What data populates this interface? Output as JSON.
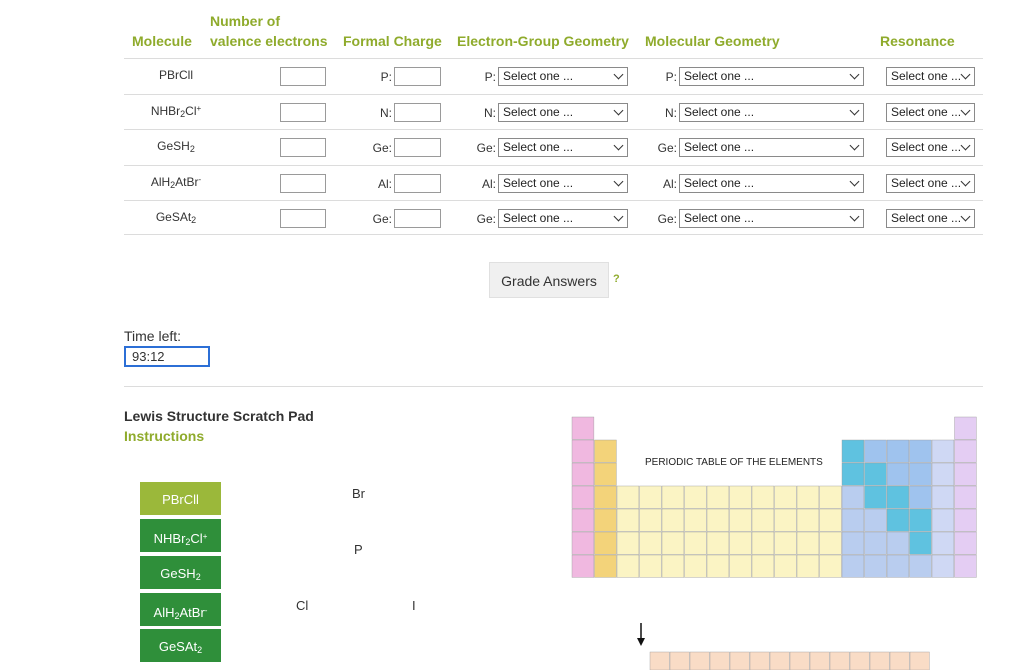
{
  "headers": {
    "molecule": "Molecule",
    "valence_line1": "Number of",
    "valence_line2": "valence electrons",
    "formal_charge": "Formal Charge",
    "egg": "Electron-Group Geometry",
    "mg": "Molecular Geometry",
    "resonance": "Resonance"
  },
  "rows": [
    {
      "base": "PBrCll",
      "charge_atom": "P:",
      "egg_atom": "P:",
      "mg_atom": "P:"
    },
    {
      "base": "NHBr",
      "sub": "2",
      "tail": "Cl",
      "sup": "+",
      "charge_atom": "N:",
      "egg_atom": "N:",
      "mg_atom": "N:"
    },
    {
      "base": "GeSH",
      "sub": "2",
      "tail": "",
      "sup": "",
      "charge_atom": "Ge:",
      "egg_atom": "Ge:",
      "mg_atom": "Ge:"
    },
    {
      "base": "AlH",
      "sub": "2",
      "tail": "AtBr",
      "sup": "-",
      "charge_atom": "Al:",
      "egg_atom": "Al:",
      "mg_atom": "Al:"
    },
    {
      "base": "GeSAt",
      "sub": "2",
      "tail": "",
      "sup": "",
      "charge_atom": "Ge:",
      "egg_atom": "Ge:",
      "mg_atom": "Ge:"
    }
  ],
  "select_placeholder": "Select one ...",
  "grade_button": "Grade Answers",
  "help_mark": "?",
  "timer": {
    "label": "Time left:",
    "value": "93:12"
  },
  "scratch": {
    "title": "Lewis Structure Scratch Pad",
    "instructions": "Instructions",
    "molecule_buttons": [
      {
        "base": "PBrCl",
        "sub": "",
        "tail": "l",
        "sup": "",
        "active": true
      },
      {
        "base": "NHBr",
        "sub": "2",
        "tail": "Cl",
        "sup": "+"
      },
      {
        "base": "GeSH",
        "sub": "2",
        "tail": "",
        "sup": ""
      },
      {
        "base": "AlH",
        "sub": "2",
        "tail": "AtBr",
        "sup": "-"
      },
      {
        "base": "GeSAt",
        "sub": "2",
        "tail": "",
        "sup": ""
      }
    ],
    "atoms": [
      "Br",
      "P",
      "Cl",
      "I"
    ]
  },
  "periodic_table": {
    "title": "PERIODIC TABLE OF THE ELEMENTS"
  },
  "colors": {
    "accent": "#8fab2c",
    "button_green": "#2f8f3a",
    "button_active": "#9bb83a"
  }
}
